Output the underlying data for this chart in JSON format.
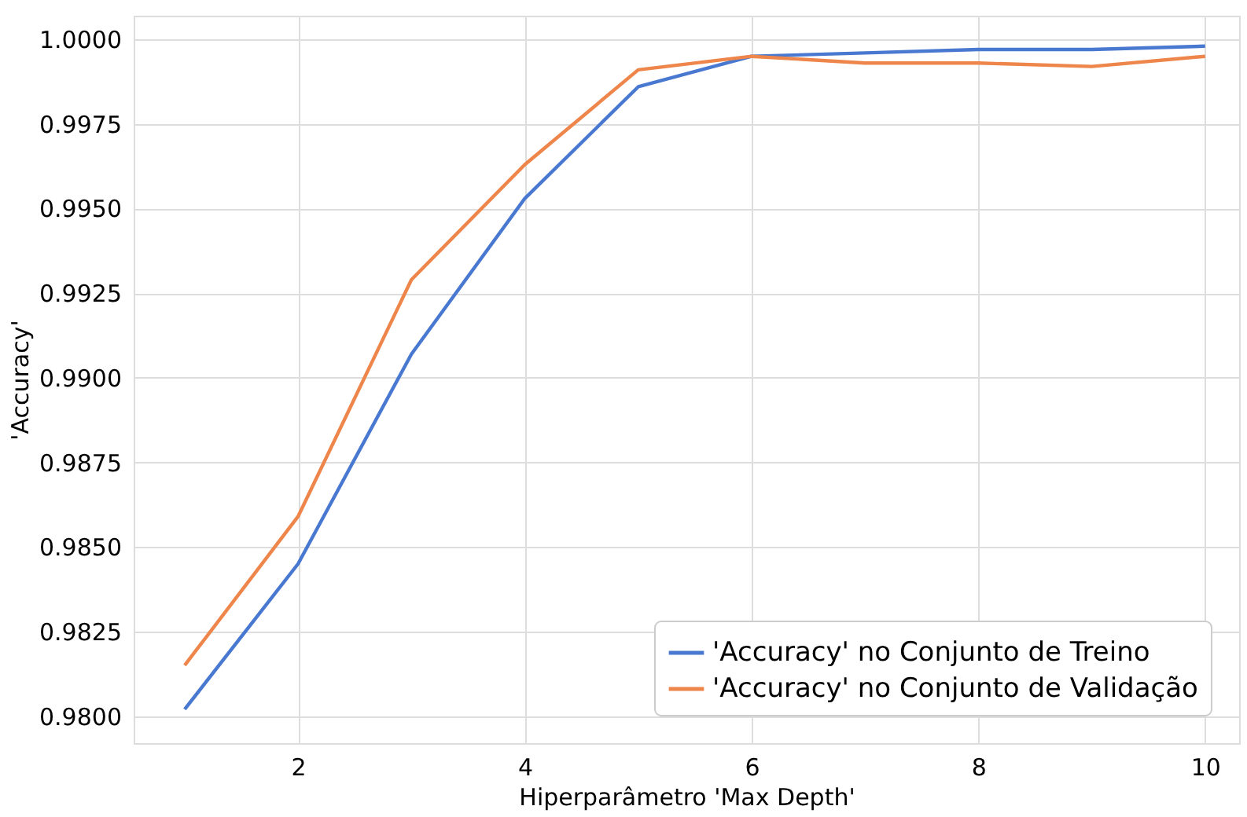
{
  "chart_data": {
    "type": "line",
    "xlabel": "Hiperparâmetro 'Max Depth'",
    "ylabel": "'Accuracy'",
    "x": [
      1,
      2,
      3,
      4,
      5,
      6,
      7,
      8,
      9,
      10
    ],
    "series": [
      {
        "name": "'Accuracy' no Conjunto de Treino",
        "color": "#4878d0",
        "values": [
          0.9802,
          0.9845,
          0.9907,
          0.9953,
          0.9986,
          0.9995,
          0.9996,
          0.9997,
          0.9997,
          0.9998
        ]
      },
      {
        "name": "'Accuracy' no Conjunto de Validação",
        "color": "#ee854a",
        "values": [
          0.9815,
          0.9859,
          0.9929,
          0.9963,
          0.9991,
          0.9995,
          0.9993,
          0.9993,
          0.9992,
          0.9995
        ]
      }
    ],
    "xlim": [
      0.55,
      10.3
    ],
    "ylim": [
      0.9792,
      1.0007
    ],
    "xticks": [
      2,
      4,
      6,
      8,
      10
    ],
    "yticks": [
      {
        "value": 0.98,
        "label": "0.9800"
      },
      {
        "value": 0.9825,
        "label": "0.9825"
      },
      {
        "value": 0.985,
        "label": "0.9850"
      },
      {
        "value": 0.9875,
        "label": "0.9875"
      },
      {
        "value": 0.99,
        "label": "0.9900"
      },
      {
        "value": 0.9925,
        "label": "0.9925"
      },
      {
        "value": 0.995,
        "label": "0.9950"
      },
      {
        "value": 0.9975,
        "label": "0.9975"
      },
      {
        "value": 1.0,
        "label": "1.0000"
      }
    ],
    "grid": true,
    "legend": "bottom right",
    "marker": "none",
    "line_style": "solid"
  }
}
